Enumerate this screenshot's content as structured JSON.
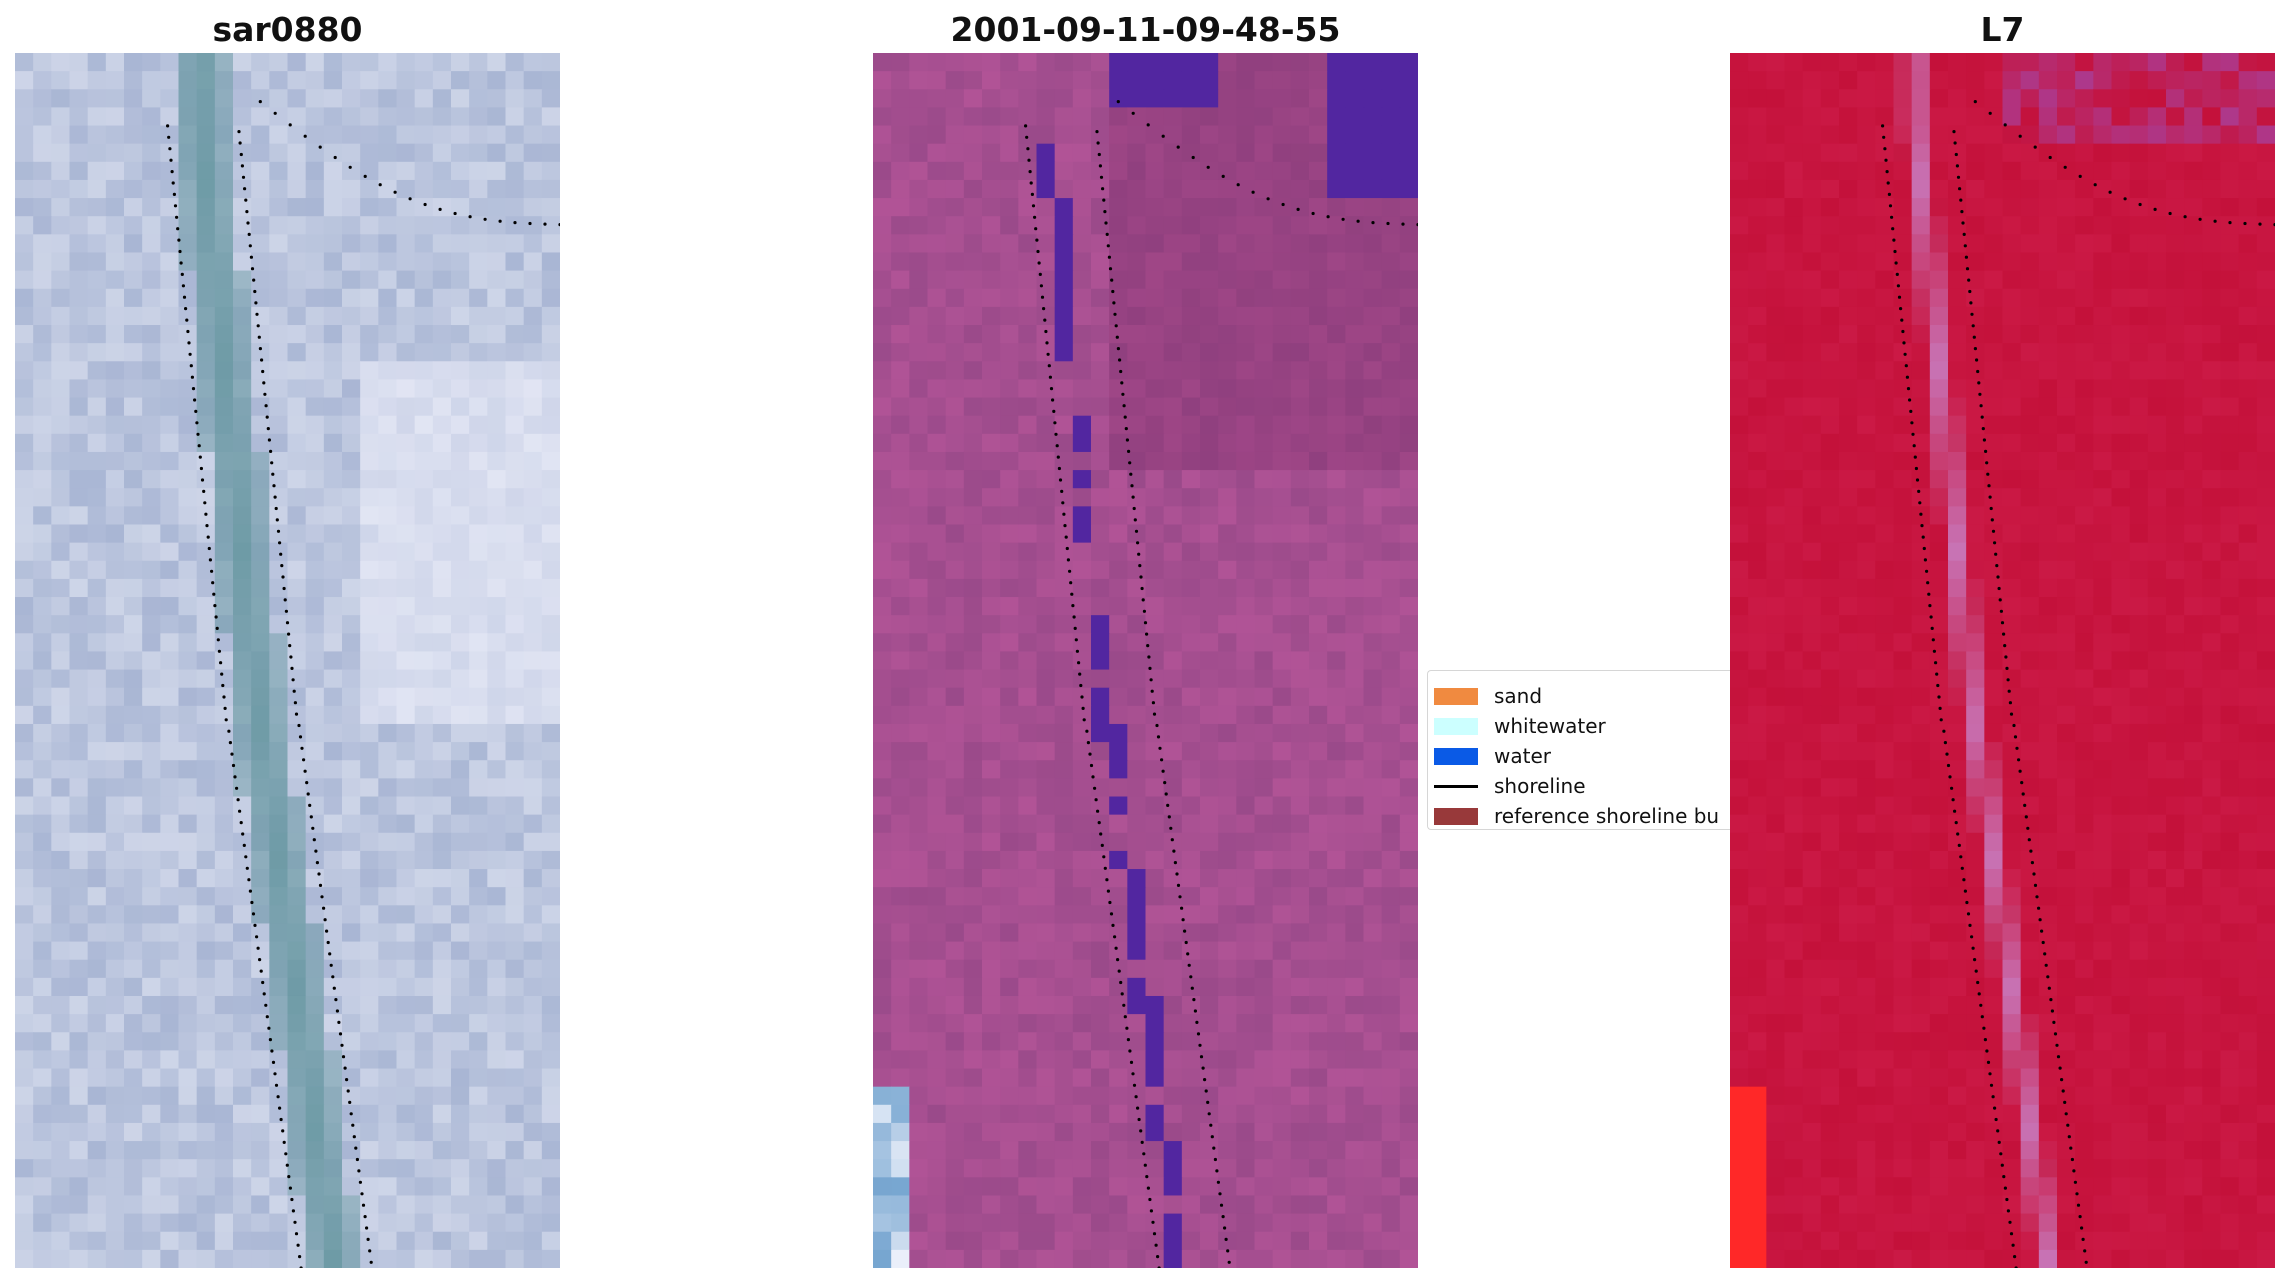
{
  "panels": {
    "rgb": {
      "title": "sar0880"
    },
    "classified": {
      "title": "2001-09-11-09-48-55"
    },
    "mndwi": {
      "title": "L7"
    }
  },
  "legend": {
    "items": [
      {
        "label": "sand",
        "color": "#f08a40",
        "kind": "patch"
      },
      {
        "label": "whitewater",
        "color": "#ccffff",
        "kind": "patch"
      },
      {
        "label": "water",
        "color": "#0a5ae6",
        "kind": "patch"
      },
      {
        "label": "shoreline",
        "color": "#000000",
        "kind": "line"
      },
      {
        "label": "reference shoreline bu",
        "color": "#98393a",
        "kind": "patch"
      }
    ]
  },
  "colors": {
    "rgb_base": "#a9b6d4",
    "rgb_channel": "#6e9ba6",
    "class_base": "#9a4a8a",
    "class_water": "#5226a0",
    "class_buffer": "#c23b3f",
    "mndwi_base": "#c4113a",
    "mndwi_channel": "#c874b6"
  }
}
